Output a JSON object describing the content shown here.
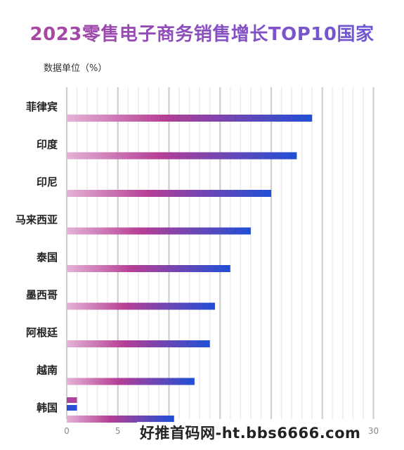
{
  "chart_data": {
    "type": "bar",
    "orientation": "horizontal",
    "title": "2023零售电子商务销售增长TOP10国家",
    "unit_label": "数据单位（%）",
    "categories": [
      "菲律宾",
      "印度",
      "印尼",
      "马来西亚",
      "泰国",
      "墨西哥",
      "阿根廷",
      "越南",
      "韩国"
    ],
    "values": [
      24,
      22.5,
      20,
      18,
      16,
      14.5,
      14,
      12.5,
      10.5
    ],
    "extra_bars": [
      {
        "category": "韩国",
        "value": 1,
        "color": "#b0449a"
      },
      {
        "category": "韩国",
        "value": 1,
        "color": "#2a4fd0"
      }
    ],
    "xlim": [
      0,
      30
    ],
    "xticks": [
      "0",
      "5",
      "10",
      "15",
      "20",
      "25",
      "30"
    ],
    "grid": true,
    "colors": {
      "start": "#e4b3d6",
      "mid": "#b63e95",
      "end": "#1f4fd6"
    }
  },
  "watermark": "好推首码网-ht.bbs6666.com"
}
